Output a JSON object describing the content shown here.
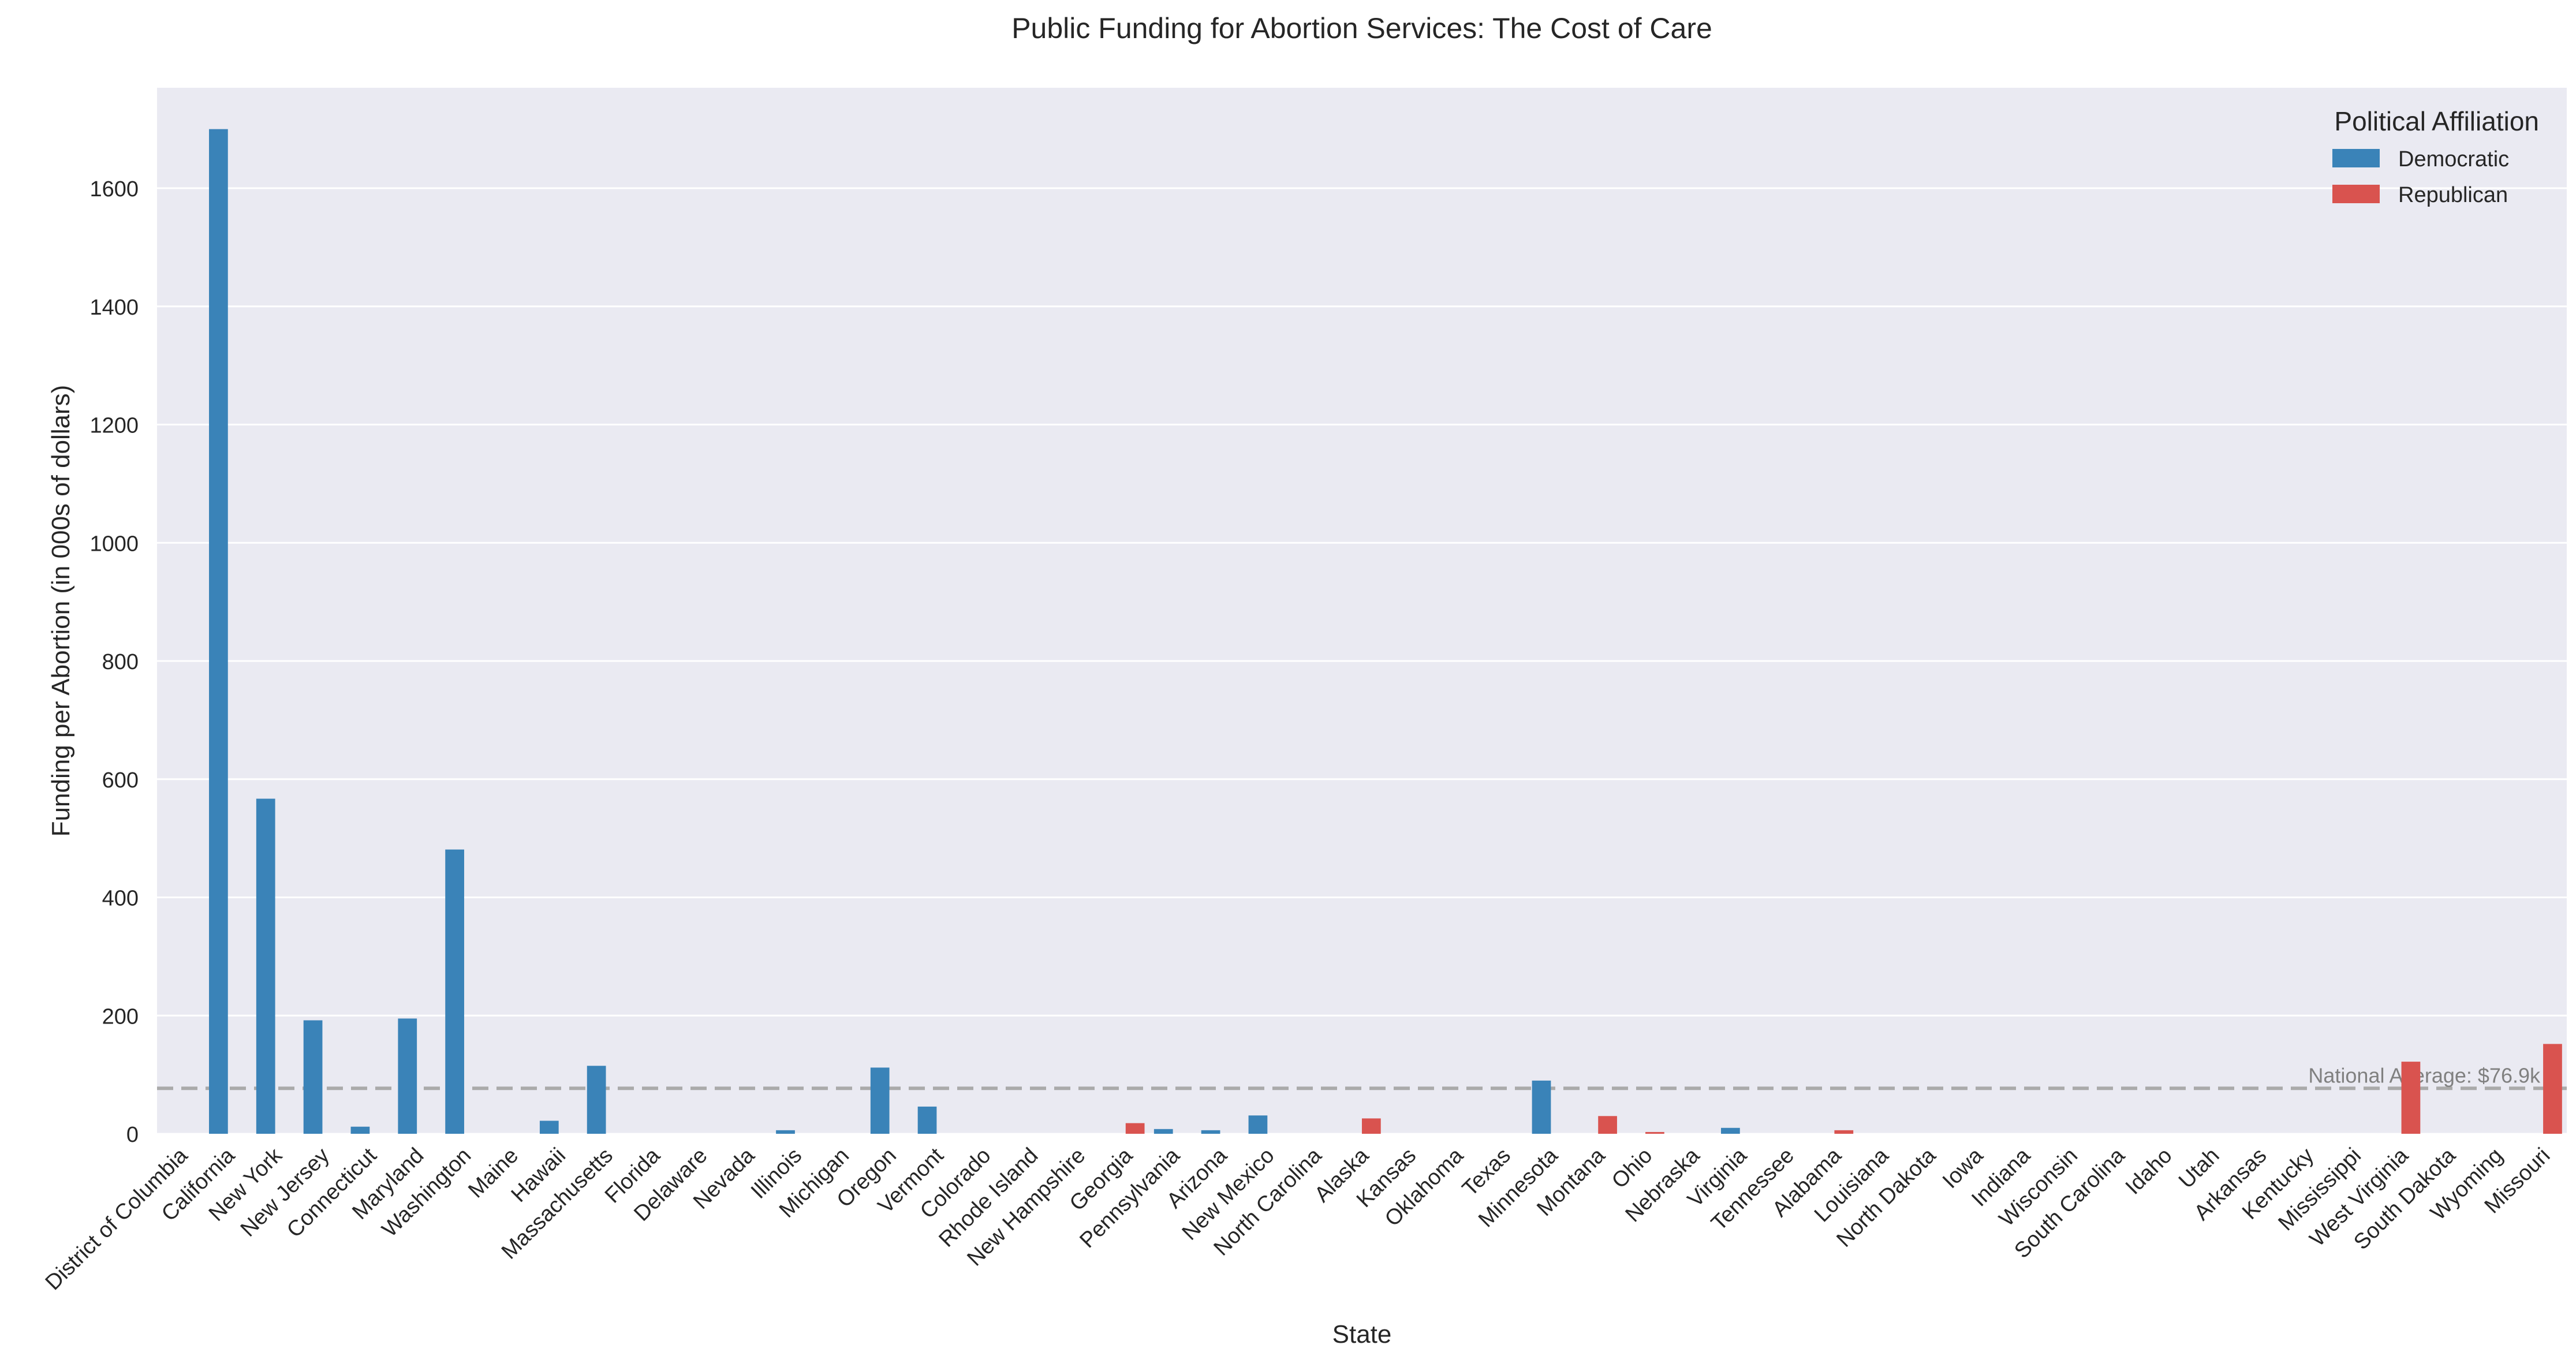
{
  "chart_data": {
    "type": "bar",
    "title": "Public Funding for Abortion Services: The Cost of Care",
    "xlabel": "State",
    "ylabel": "Funding per Abortion (in 000s of dollars)",
    "ylim": [
      0,
      1770
    ],
    "yticks": [
      0,
      200,
      400,
      600,
      800,
      1000,
      1200,
      1400,
      1600
    ],
    "grid": "horizontal",
    "legend": {
      "title": "Political Affiliation",
      "placement": "top-right",
      "entries": [
        "Democratic",
        "Republican"
      ]
    },
    "colors": {
      "Democratic": "#3a83b8",
      "Republican": "#d9534f",
      "background": "#eaeaf2",
      "grid": "#ffffff",
      "reference": "#aaaaaa"
    },
    "reference_line": {
      "value": 76.9,
      "label": "National Average: $76.9k"
    },
    "categories": [
      "District of Columbia",
      "California",
      "New York",
      "New Jersey",
      "Connecticut",
      "Maryland",
      "Washington",
      "Maine",
      "Hawaii",
      "Massachusetts",
      "Florida",
      "Delaware",
      "Nevada",
      "Illinois",
      "Michigan",
      "Oregon",
      "Vermont",
      "Colorado",
      "Rhode Island",
      "New Hampshire",
      "Georgia",
      "Pennsylvania",
      "Arizona",
      "New Mexico",
      "North Carolina",
      "Alaska",
      "Kansas",
      "Oklahoma",
      "Texas",
      "Minnesota",
      "Montana",
      "Ohio",
      "Nebraska",
      "Virginia",
      "Tennessee",
      "Alabama",
      "Louisiana",
      "North Dakota",
      "Iowa",
      "Indiana",
      "Wisconsin",
      "South Carolina",
      "Idaho",
      "Utah",
      "Arkansas",
      "Kentucky",
      "Mississippi",
      "West Virginia",
      "South Dakota",
      "Wyoming",
      "Missouri"
    ],
    "series": [
      {
        "name": "Democratic",
        "values": [
          null,
          1700,
          567,
          192,
          12,
          195,
          481,
          null,
          22,
          115,
          null,
          null,
          null,
          6,
          null,
          112,
          46,
          null,
          null,
          null,
          null,
          8,
          6,
          31,
          null,
          null,
          null,
          null,
          null,
          90,
          null,
          null,
          null,
          10,
          null,
          null,
          null,
          null,
          null,
          null,
          null,
          null,
          null,
          null,
          null,
          null,
          null,
          null,
          null,
          null,
          null
        ]
      },
      {
        "name": "Republican",
        "values": [
          null,
          null,
          null,
          null,
          null,
          null,
          null,
          null,
          null,
          null,
          null,
          null,
          null,
          null,
          null,
          null,
          null,
          null,
          null,
          null,
          18,
          null,
          null,
          null,
          null,
          26,
          null,
          null,
          null,
          null,
          30,
          3,
          null,
          null,
          null,
          6,
          null,
          null,
          null,
          null,
          null,
          null,
          null,
          null,
          null,
          null,
          null,
          122,
          null,
          null,
          152
        ]
      }
    ]
  }
}
